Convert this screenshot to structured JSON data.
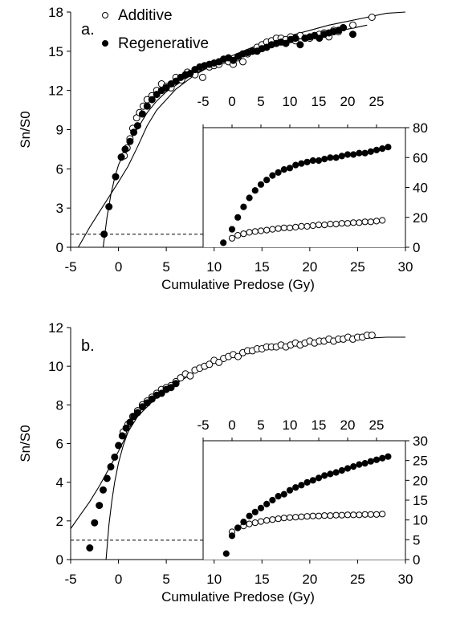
{
  "chart_data": [
    {
      "panel_label": "a.",
      "type": "scatter",
      "ylabel": "Sn/S0",
      "xlabel": "Cumulative Predose (Gy)",
      "xlim": [
        -5,
        30
      ],
      "ylim": [
        0,
        18
      ],
      "x_ticks": [
        -5,
        0,
        5,
        10,
        15,
        20,
        25,
        30
      ],
      "y_ticks": [
        0,
        3,
        6,
        9,
        12,
        15,
        18
      ],
      "reference_line": {
        "y": 1,
        "style": "dashed"
      },
      "legend": [
        {
          "label": "Additive",
          "marker": "open-circle"
        },
        {
          "label": "Regenerative",
          "marker": "filled-circle"
        }
      ],
      "series": [
        {
          "name": "Additive",
          "marker": "open-circle",
          "x": [
            0.3,
            0.6,
            0.9,
            1.2,
            1.5,
            1.9,
            2.2,
            2.6,
            3.0,
            3.5,
            4.0,
            4.5,
            5.0,
            5.5,
            6.0,
            6.6,
            7.2,
            8.0,
            8.8,
            9.5,
            10.0,
            10.5,
            11.0,
            11.5,
            12.0,
            12.5,
            13.0,
            13.5,
            14.0,
            14.5,
            15.0,
            15.5,
            16.0,
            16.5,
            17.0,
            17.5,
            18.0,
            18.5,
            19.0,
            19.5,
            20.0,
            20.5,
            21.0,
            21.5,
            22.0,
            22.5,
            23.0,
            23.5,
            24.5,
            26.5
          ],
          "y": [
            6.9,
            7.0,
            7.6,
            8.3,
            9.1,
            9.9,
            10.3,
            10.8,
            11.3,
            11.6,
            12.0,
            12.5,
            12.3,
            12.2,
            13.0,
            12.8,
            13.4,
            13.2,
            13.0,
            13.8,
            13.9,
            14.0,
            14.3,
            14.2,
            14.0,
            14.5,
            14.2,
            14.8,
            15.0,
            15.3,
            15.5,
            15.7,
            15.8,
            16.0,
            16.0,
            15.9,
            16.1,
            15.8,
            16.2,
            16.0,
            16.0,
            16.2,
            16.3,
            16.4,
            16.1,
            16.6,
            16.5,
            16.8,
            17.0,
            17.6
          ]
        },
        {
          "name": "Regenerative",
          "marker": "filled-circle",
          "x": [
            -1.5,
            -1.0,
            -0.3,
            0.3,
            0.7,
            1.2,
            1.6,
            2.0,
            2.5,
            3.0,
            3.5,
            4.0,
            4.5,
            5.0,
            5.5,
            6.0,
            6.5,
            7.0,
            7.5,
            8.0,
            8.5,
            9.0,
            9.5,
            10.0,
            10.5,
            11.0,
            11.5,
            12.0,
            12.5,
            13.0,
            13.5,
            14.0,
            14.5,
            15.0,
            15.5,
            16.0,
            16.5,
            17.0,
            17.5,
            18.0,
            18.5,
            19.0,
            19.5,
            20.0,
            20.5,
            21.0,
            21.5,
            22.0,
            22.5,
            23.0,
            23.5,
            24.5
          ],
          "y": [
            1.0,
            3.1,
            5.4,
            6.9,
            7.5,
            8.1,
            8.8,
            9.3,
            10.2,
            10.8,
            11.3,
            11.7,
            12.0,
            12.2,
            12.5,
            12.7,
            13.0,
            13.2,
            13.3,
            13.6,
            13.8,
            13.9,
            14.0,
            14.1,
            14.2,
            14.4,
            14.5,
            14.3,
            14.6,
            14.8,
            14.9,
            15.0,
            15.0,
            15.2,
            15.3,
            15.5,
            15.6,
            15.7,
            15.6,
            15.9,
            16.0,
            15.5,
            16.0,
            16.1,
            16.2,
            16.0,
            16.3,
            16.4,
            16.5,
            16.6,
            16.8,
            16.3
          ]
        }
      ],
      "fits": [
        {
          "series": "Additive",
          "x": [
            -4.2,
            -3,
            -2,
            -1,
            0,
            1,
            2,
            3,
            4,
            6,
            8,
            10,
            12,
            14,
            16,
            18,
            20,
            22,
            24,
            26,
            28,
            30
          ],
          "y": [
            0,
            1.54,
            2.7,
            3.85,
            5.0,
            6.2,
            7.7,
            9.3,
            10.5,
            12.1,
            13.2,
            14.0,
            14.7,
            15.3,
            15.8,
            16.2,
            16.6,
            17.0,
            17.3,
            17.6,
            17.9,
            18.0
          ]
        },
        {
          "series": "Regenerative",
          "x": [
            -1.6,
            -1.2,
            -0.8,
            -0.4,
            0,
            0.5,
            1,
            1.5,
            2,
            3,
            4,
            5,
            6,
            7,
            8,
            10,
            12,
            14,
            16,
            18,
            20,
            22,
            24,
            26
          ],
          "y": [
            0,
            2.3,
            4.0,
            5.3,
            6.3,
            7.1,
            7.8,
            8.5,
            9.1,
            10.3,
            11.2,
            11.9,
            12.4,
            12.9,
            13.3,
            14.0,
            14.5,
            15.0,
            15.4,
            15.8,
            16.1,
            16.4,
            16.7,
            17.0
          ]
        }
      ],
      "inset": {
        "type": "scatter",
        "x_ticks": [
          -5,
          0,
          5,
          10,
          15,
          20,
          25
        ],
        "xlim": [
          -5,
          30
        ],
        "y_ticks": [
          0,
          20,
          40,
          60,
          80
        ],
        "ylim": [
          0,
          80
        ],
        "series": [
          {
            "name": "Additive",
            "marker": "open-circle",
            "x": [
              0,
              1,
              2,
              3,
              4,
              5,
              6,
              7,
              8,
              9,
              10,
              11,
              12,
              13,
              14,
              15,
              16,
              17,
              18,
              19,
              20,
              21,
              22,
              23,
              24,
              25,
              26
            ],
            "y": [
              6,
              8,
              9,
              10,
              10.5,
              11,
              11.5,
              12,
              12.5,
              13,
              13,
              13.5,
              14,
              14,
              14.5,
              15,
              15,
              15.5,
              15.5,
              16,
              16,
              16.5,
              16.5,
              17,
              17,
              17.5,
              18
            ]
          },
          {
            "name": "Regenerative",
            "marker": "filled-circle",
            "x": [
              -1.5,
              0,
              1,
              2,
              3,
              4,
              5,
              6,
              7,
              8,
              9,
              10,
              11,
              12,
              13,
              14,
              15,
              16,
              17,
              18,
              19,
              20,
              21,
              22,
              23,
              24,
              25,
              26,
              27
            ],
            "y": [
              3,
              12,
              20,
              27,
              33,
              38,
              42,
              45,
              48,
              50,
              52,
              53,
              55,
              56,
              57,
              58,
              58,
              59,
              60,
              60,
              61,
              62,
              62,
              63,
              63,
              64,
              65,
              66,
              67
            ]
          }
        ]
      }
    },
    {
      "panel_label": "b.",
      "type": "scatter",
      "ylabel": "Sn/S0",
      "xlabel": "Cumulative Predose (Gy)",
      "xlim": [
        -5,
        30
      ],
      "ylim": [
        0,
        12
      ],
      "x_ticks": [
        -5,
        0,
        5,
        10,
        15,
        20,
        25,
        30
      ],
      "y_ticks": [
        0,
        2,
        4,
        6,
        8,
        10,
        12
      ],
      "reference_line": {
        "y": 1,
        "style": "dashed"
      },
      "series": [
        {
          "name": "Additive",
          "marker": "open-circle",
          "x": [
            0.5,
            1.0,
            1.5,
            2.0,
            2.5,
            3.0,
            3.5,
            4.0,
            4.5,
            5.0,
            5.5,
            6.0,
            6.5,
            7.0,
            7.5,
            8.0,
            8.5,
            9.0,
            9.5,
            10.0,
            10.5,
            11.0,
            11.5,
            12.0,
            12.5,
            13.0,
            13.5,
            14.0,
            14.5,
            15.0,
            15.5,
            16.0,
            16.5,
            17.0,
            17.5,
            18.0,
            18.5,
            19.0,
            19.5,
            20.0,
            20.5,
            21.0,
            21.5,
            22.0,
            22.5,
            23.0,
            23.5,
            24.0,
            24.5,
            25.0,
            25.5,
            26.0,
            26.5
          ],
          "y": [
            6.6,
            7.0,
            7.4,
            7.7,
            8.0,
            8.2,
            8.4,
            8.6,
            8.8,
            8.9,
            9.0,
            9.2,
            9.4,
            9.6,
            9.5,
            9.8,
            9.9,
            10.0,
            10.1,
            10.3,
            10.2,
            10.4,
            10.5,
            10.6,
            10.5,
            10.7,
            10.8,
            10.8,
            10.9,
            10.9,
            11.0,
            11.0,
            11.0,
            11.1,
            11.0,
            11.1,
            11.2,
            11.1,
            11.2,
            11.3,
            11.2,
            11.3,
            11.3,
            11.4,
            11.3,
            11.4,
            11.4,
            11.5,
            11.4,
            11.5,
            11.5,
            11.6,
            11.6
          ]
        },
        {
          "name": "Regenerative",
          "marker": "filled-circle",
          "x": [
            -3.0,
            -2.5,
            -2.0,
            -1.6,
            -1.2,
            -0.8,
            -0.4,
            0.0,
            0.4,
            0.8,
            1.2,
            1.6,
            2.0,
            2.5,
            3.0,
            3.5,
            4.0,
            4.5,
            5.0,
            5.5,
            6.0
          ],
          "y": [
            0.6,
            1.9,
            2.8,
            3.6,
            4.2,
            4.8,
            5.3,
            5.9,
            6.4,
            6.8,
            7.1,
            7.4,
            7.6,
            7.9,
            8.1,
            8.3,
            8.5,
            8.6,
            8.8,
            8.9,
            9.1
          ]
        }
      ],
      "fits": [
        {
          "series": "Additive",
          "x": [
            -5,
            -4,
            -3,
            -2,
            -1,
            0,
            1,
            2,
            3,
            4,
            6,
            8,
            10,
            12,
            14,
            16,
            18,
            20,
            22,
            24,
            26,
            28,
            30
          ],
          "y": [
            1.6,
            2.3,
            3.0,
            3.8,
            4.7,
            5.6,
            6.6,
            7.4,
            7.9,
            8.4,
            9.1,
            9.7,
            10.2,
            10.5,
            10.8,
            11.0,
            11.1,
            11.2,
            11.3,
            11.4,
            11.45,
            11.5,
            11.5
          ]
        },
        {
          "series": "Regenerative",
          "x": [
            -1.3,
            -1.0,
            -0.7,
            -0.4,
            0,
            0.5,
            1.0
          ],
          "y": [
            0,
            1.8,
            3.0,
            4.0,
            5.0,
            5.9,
            6.6
          ]
        }
      ],
      "inset": {
        "type": "scatter",
        "x_ticks": [
          -5,
          0,
          5,
          10,
          15,
          20,
          25
        ],
        "xlim": [
          -5,
          30
        ],
        "y_ticks": [
          0,
          5,
          10,
          15,
          20,
          25,
          30
        ],
        "ylim": [
          0,
          30
        ],
        "series": [
          {
            "name": "Additive",
            "marker": "open-circle",
            "x": [
              0,
              1,
              2,
              3,
              4,
              5,
              6,
              7,
              8,
              9,
              10,
              11,
              12,
              13,
              14,
              15,
              16,
              17,
              18,
              19,
              20,
              21,
              22,
              23,
              24,
              25,
              26
            ],
            "y": [
              7,
              8,
              8.5,
              9,
              9.3,
              9.6,
              9.9,
              10.1,
              10.3,
              10.5,
              10.6,
              10.7,
              10.8,
              10.9,
              11.0,
              11.0,
              11.1,
              11.1,
              11.2,
              11.2,
              11.3,
              11.3,
              11.3,
              11.4,
              11.4,
              11.4,
              11.5
            ]
          },
          {
            "name": "Regenerative",
            "marker": "filled-circle",
            "x": [
              -1.0,
              0,
              1,
              2,
              3,
              4,
              5,
              6,
              7,
              8,
              9,
              10,
              11,
              12,
              13,
              14,
              15,
              16,
              17,
              18,
              19,
              20,
              21,
              22,
              23,
              24,
              25,
              26,
              27
            ],
            "y": [
              1.5,
              6,
              8,
              9.5,
              11,
              12,
              13,
              14,
              15,
              16,
              16.5,
              17.5,
              18.2,
              18.8,
              19.5,
              20,
              20.6,
              21.2,
              21.6,
              22,
              22.5,
              23,
              23.5,
              24,
              24.3,
              24.8,
              25.2,
              25.6,
              26
            ]
          }
        ]
      }
    }
  ]
}
